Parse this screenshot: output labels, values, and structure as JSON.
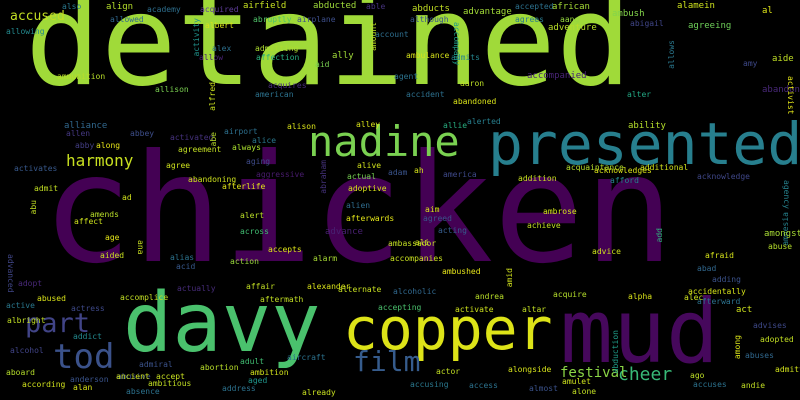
{
  "words": [
    {
      "text": "detained",
      "color": "#a0da39"
    },
    {
      "text": "chicken",
      "color": "#440154"
    },
    {
      "text": "davy",
      "color": "#4ac16d"
    },
    {
      "text": "copper",
      "color": "#dde318"
    },
    {
      "text": "mud",
      "color": "#46085c"
    },
    {
      "text": "presented",
      "color": "#277f8e"
    },
    {
      "text": "nadine",
      "color": "#7ad151"
    },
    {
      "text": "tod",
      "color": "#3b528b"
    },
    {
      "text": "part",
      "color": "#414487"
    },
    {
      "text": "film",
      "color": "#365c8d"
    },
    {
      "text": "harmony",
      "color": "#c8e020"
    },
    {
      "text": "cheer",
      "color": "#38b977"
    },
    {
      "text": "festival",
      "color": "#8bd646"
    },
    {
      "text": "accused",
      "color": "#c2df23"
    },
    {
      "text": "abducted",
      "color": "#9fda3a"
    },
    {
      "text": "also",
      "color": "#2a788e"
    },
    {
      "text": "align",
      "color": "#b5de2b"
    },
    {
      "text": "academy",
      "color": "#2e6f8e"
    },
    {
      "text": "acquired",
      "color": "#5e3c99"
    },
    {
      "text": "airfield",
      "color": "#c5e021"
    },
    {
      "text": "able",
      "color": "#46337e"
    },
    {
      "text": "abducts",
      "color": "#c2df23"
    },
    {
      "text": "advantage",
      "color": "#a2da37"
    },
    {
      "text": "accepted",
      "color": "#2c718e"
    },
    {
      "text": "african",
      "color": "#a5db36"
    },
    {
      "text": "ambush",
      "color": "#84d44b"
    },
    {
      "text": "alamein",
      "color": "#cde11d"
    },
    {
      "text": "al",
      "color": "#dde318"
    },
    {
      "text": "abigail",
      "color": "#404688"
    },
    {
      "text": "agreeing",
      "color": "#6ece58"
    },
    {
      "text": "aide",
      "color": "#c0df25"
    },
    {
      "text": "allowed",
      "color": "#31688e"
    },
    {
      "text": "abruptly",
      "color": "#50c46a"
    },
    {
      "text": "airplane",
      "color": "#3d4e8a"
    },
    {
      "text": "although",
      "color": "#3a548c"
    },
    {
      "text": "agrees",
      "color": "#297a8e"
    },
    {
      "text": "aang",
      "color": "#95d840"
    },
    {
      "text": "adventure",
      "color": "#b8de29"
    },
    {
      "text": "allowing",
      "color": "#23898e"
    },
    {
      "text": "activity",
      "color": "#20928c"
    },
    {
      "text": "albert",
      "color": "#d8e219"
    },
    {
      "text": "alex",
      "color": "#2d708e"
    },
    {
      "text": "allow",
      "color": "#482173"
    },
    {
      "text": "admitting",
      "color": "#addc30"
    },
    {
      "text": "affection",
      "color": "#29af7f"
    },
    {
      "text": "ally",
      "color": "#a0da39"
    },
    {
      "text": "aid",
      "color": "#7ad151"
    },
    {
      "text": "amount",
      "color": "#bddf26"
    },
    {
      "text": "account",
      "color": "#2e6e8e"
    },
    {
      "text": "ambulance",
      "color": "#d5e21a"
    },
    {
      "text": "admits",
      "color": "#25858e"
    },
    {
      "text": "accompany",
      "color": "#1f9e89"
    },
    {
      "text": "allows",
      "color": "#2a788e"
    },
    {
      "text": "amy",
      "color": "#3e4989"
    },
    {
      "text": "ammunition",
      "color": "#b8de29"
    },
    {
      "text": "allison",
      "color": "#7ad151"
    },
    {
      "text": "alfred",
      "color": "#cae11f"
    },
    {
      "text": "american",
      "color": "#2c728e"
    },
    {
      "text": "acquires",
      "color": "#472d7b"
    },
    {
      "text": "agent",
      "color": "#2c738e"
    },
    {
      "text": "accident",
      "color": "#2d708e"
    },
    {
      "text": "aaron",
      "color": "#bddf26"
    },
    {
      "text": "accompanied",
      "color": "#482475"
    },
    {
      "text": "alter",
      "color": "#22a884"
    },
    {
      "text": "abandon",
      "color": "#482878"
    },
    {
      "text": "activist",
      "color": "#e2e418"
    },
    {
      "text": "alliance",
      "color": "#31688e"
    },
    {
      "text": "allen",
      "color": "#453882"
    },
    {
      "text": "along",
      "color": "#e5e419"
    },
    {
      "text": "alley",
      "color": "#d8e219"
    },
    {
      "text": "allie",
      "color": "#28ae80"
    },
    {
      "text": "alerted",
      "color": "#277f8e"
    },
    {
      "text": "abandoned",
      "color": "#d8e219"
    },
    {
      "text": "ability",
      "color": "#b5de2b"
    },
    {
      "text": "abbey",
      "color": "#3d4e8a"
    },
    {
      "text": "activated",
      "color": "#46327e"
    },
    {
      "text": "airport",
      "color": "#2d708e"
    },
    {
      "text": "alison",
      "color": "#d8e219"
    },
    {
      "text": "alice",
      "color": "#2a788e"
    },
    {
      "text": "abe",
      "color": "#b8de29"
    },
    {
      "text": "always",
      "color": "#ade32f"
    },
    {
      "text": "agreement",
      "color": "#c2df23"
    },
    {
      "text": "abby",
      "color": "#433e85"
    },
    {
      "text": "activates",
      "color": "#38598c"
    },
    {
      "text": "agree",
      "color": "#cde11d"
    },
    {
      "text": "aging",
      "color": "#3e4a89"
    },
    {
      "text": "abandoning",
      "color": "#cde11d"
    },
    {
      "text": "aggressive",
      "color": "#481b6d"
    },
    {
      "text": "abraham",
      "color": "#46337e"
    },
    {
      "text": "actual",
      "color": "#77d153"
    },
    {
      "text": "alive",
      "color": "#d0e11c"
    },
    {
      "text": "adam",
      "color": "#3a548c"
    },
    {
      "text": "ah",
      "color": "#d5e21a"
    },
    {
      "text": "america",
      "color": "#3e4989"
    },
    {
      "text": "acquaintance",
      "color": "#b5de2b"
    },
    {
      "text": "addition",
      "color": "#c8e020"
    },
    {
      "text": "acknowledges",
      "color": "#d8e219"
    },
    {
      "text": "additional",
      "color": "#d0e11c"
    },
    {
      "text": "acknowledge",
      "color": "#3f4788"
    },
    {
      "text": "afford",
      "color": "#24868e"
    },
    {
      "text": "admit",
      "color": "#c2df23"
    },
    {
      "text": "afterlife",
      "color": "#e2e418"
    },
    {
      "text": "adoptive",
      "color": "#d8e219"
    },
    {
      "text": "alien",
      "color": "#2f6c8e"
    },
    {
      "text": "agency",
      "color": "#26828e"
    },
    {
      "text": "amnesia",
      "color": "#26828e"
    },
    {
      "text": "abu",
      "color": "#c2df23"
    },
    {
      "text": "ad",
      "color": "#d0e11c"
    },
    {
      "text": "affect",
      "color": "#cde11d"
    },
    {
      "text": "alert",
      "color": "#bade28"
    },
    {
      "text": "afterwards",
      "color": "#e2e418"
    },
    {
      "text": "aim",
      "color": "#d8e219"
    },
    {
      "text": "ambrose",
      "color": "#d2e21b"
    },
    {
      "text": "agreed",
      "color": "#3b528b"
    },
    {
      "text": "amends",
      "color": "#b8de29"
    },
    {
      "text": "across",
      "color": "#40bd72"
    },
    {
      "text": "advance",
      "color": "#482071"
    },
    {
      "text": "achieve",
      "color": "#c2df23"
    },
    {
      "text": "acting",
      "color": "#365c8d"
    },
    {
      "text": "age",
      "color": "#e2e418"
    },
    {
      "text": "ambassador",
      "color": "#c2df23"
    },
    {
      "text": "ali",
      "color": "#cde11d"
    },
    {
      "text": "amongst",
      "color": "#a8db34"
    },
    {
      "text": "add",
      "color": "#30b47c"
    },
    {
      "text": "accepts",
      "color": "#dde318"
    },
    {
      "text": "aided",
      "color": "#c8e020"
    },
    {
      "text": "ana",
      "color": "#c8e020"
    },
    {
      "text": "abuse",
      "color": "#b5de2b"
    },
    {
      "text": "alias",
      "color": "#2c738e"
    },
    {
      "text": "action",
      "color": "#9bd93c"
    },
    {
      "text": "alarm",
      "color": "#a8db34"
    },
    {
      "text": "accompanies",
      "color": "#c8e020"
    },
    {
      "text": "advice",
      "color": "#cde11d"
    },
    {
      "text": "afraid",
      "color": "#d5e21a"
    },
    {
      "text": "acid",
      "color": "#38598c"
    },
    {
      "text": "ambushed",
      "color": "#e5e419"
    },
    {
      "text": "abad",
      "color": "#31688e"
    },
    {
      "text": "advanced",
      "color": "#404688"
    },
    {
      "text": "adopt",
      "color": "#482878"
    },
    {
      "text": "actually",
      "color": "#472c7a"
    },
    {
      "text": "affair",
      "color": "#c2df23"
    },
    {
      "text": "alexander",
      "color": "#d8e219"
    },
    {
      "text": "alternate",
      "color": "#c8e020"
    },
    {
      "text": "alcoholic",
      "color": "#31688e"
    },
    {
      "text": "amid",
      "color": "#d0e11c"
    },
    {
      "text": "adding",
      "color": "#3b528b"
    },
    {
      "text": "accidentally",
      "color": "#d5e21a"
    },
    {
      "text": "abused",
      "color": "#d8e219"
    },
    {
      "text": "accomplice",
      "color": "#c2df23"
    },
    {
      "text": "aftermath",
      "color": "#c2df23"
    },
    {
      "text": "andrea",
      "color": "#b8de29"
    },
    {
      "text": "acquire",
      "color": "#b5de2b"
    },
    {
      "text": "alpha",
      "color": "#d8e219"
    },
    {
      "text": "alec",
      "color": "#cde11d"
    },
    {
      "text": "afterward",
      "color": "#2c728e"
    },
    {
      "text": "active",
      "color": "#2a788e"
    },
    {
      "text": "actress",
      "color": "#3e4989"
    },
    {
      "text": "accepting",
      "color": "#4ac16d"
    },
    {
      "text": "activate",
      "color": "#cde11d"
    },
    {
      "text": "altar",
      "color": "#c2df23"
    },
    {
      "text": "act",
      "color": "#cde11d"
    },
    {
      "text": "albright",
      "color": "#c2df23"
    },
    {
      "text": "addict",
      "color": "#23898e"
    },
    {
      "text": "advises",
      "color": "#3e4989"
    },
    {
      "text": "abduction",
      "color": "#1f9e89"
    },
    {
      "text": "among",
      "color": "#d8e219"
    },
    {
      "text": "adopted",
      "color": "#c2df23"
    },
    {
      "text": "alcohol",
      "color": "#414487"
    },
    {
      "text": "admiral",
      "color": "#3b528b"
    },
    {
      "text": "adult",
      "color": "#40bd72"
    },
    {
      "text": "aircraft",
      "color": "#2c728e"
    },
    {
      "text": "alongside",
      "color": "#d5e21a"
    },
    {
      "text": "abuses",
      "color": "#31688e"
    },
    {
      "text": "abusive",
      "color": "#3b528b"
    },
    {
      "text": "ancient",
      "color": "#cde11d"
    },
    {
      "text": "accept",
      "color": "#c8e020"
    },
    {
      "text": "abortion",
      "color": "#b8de29"
    },
    {
      "text": "ambition",
      "color": "#d2e21b"
    },
    {
      "text": "actor",
      "color": "#c2df23"
    },
    {
      "text": "ago",
      "color": "#bddf26"
    },
    {
      "text": "admitted",
      "color": "#d0e11c"
    },
    {
      "text": "aboard",
      "color": "#b5de2b"
    },
    {
      "text": "anderson",
      "color": "#3a548c"
    },
    {
      "text": "ambitious",
      "color": "#c2df23"
    },
    {
      "text": "aged",
      "color": "#1f968b"
    },
    {
      "text": "accusing",
      "color": "#2a788e"
    },
    {
      "text": "access",
      "color": "#2c728e"
    },
    {
      "text": "almost",
      "color": "#3b528b"
    },
    {
      "text": "amulet",
      "color": "#cde11d"
    },
    {
      "text": "accuses",
      "color": "#2c728e"
    },
    {
      "text": "andie",
      "color": "#c2df23"
    },
    {
      "text": "according",
      "color": "#d0e11c"
    },
    {
      "text": "alan",
      "color": "#d8e219"
    },
    {
      "text": "absence",
      "color": "#2c728e"
    },
    {
      "text": "address",
      "color": "#2c728e"
    },
    {
      "text": "already",
      "color": "#c8e020"
    },
    {
      "text": "alone",
      "color": "#c2df23"
    }
  ]
}
